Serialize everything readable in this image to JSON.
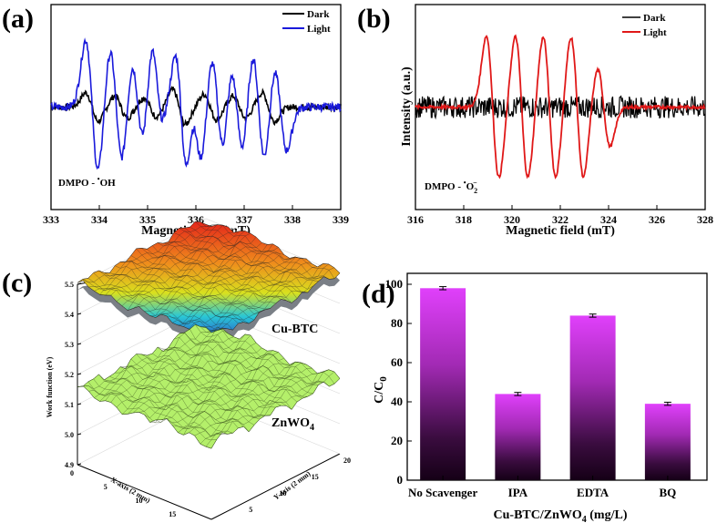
{
  "panels": {
    "a": {
      "label": "(a)"
    },
    "b": {
      "label": "(b)"
    },
    "c": {
      "label": "(c)"
    },
    "d": {
      "label": "(d)"
    }
  },
  "chart_data": [
    {
      "id": "a",
      "type": "line",
      "title": "",
      "xlabel": "Magnetic field (mT)",
      "ylabel": "",
      "xlim": [
        333,
        339
      ],
      "ylim": [
        -1.3,
        1.3
      ],
      "xticks": [
        "333",
        "334",
        "335",
        "336",
        "337",
        "338",
        "339"
      ],
      "legend": {
        "position": "top-right",
        "entries": [
          "Dark",
          "Light"
        ]
      },
      "annotation_prefix": "DMPO - ",
      "annotation_radical": "OH",
      "colors": {
        "Dark": "#000000",
        "Light": "#1a1adb"
      },
      "series": [
        {
          "name": "Dark",
          "baseline": 0,
          "noise": 0.04,
          "peaks": [
            [
              333.85,
              0.18
            ],
            [
              334.45,
              0.14
            ],
            [
              335.05,
              0.12
            ],
            [
              335.65,
              0.22
            ],
            [
              336.3,
              0.16
            ],
            [
              336.9,
              0.14
            ],
            [
              337.5,
              0.18
            ]
          ]
        },
        {
          "name": "Light",
          "baseline": 0,
          "noise": 0.05,
          "peaks": [
            [
              333.85,
              0.85
            ],
            [
              334.35,
              0.75
            ],
            [
              334.8,
              0.62
            ],
            [
              335.2,
              0.85
            ],
            [
              335.45,
              0.6
            ],
            [
              335.7,
              1.3
            ],
            [
              336.0,
              0.7
            ],
            [
              336.45,
              0.68
            ],
            [
              336.85,
              0.62
            ],
            [
              337.3,
              0.72
            ],
            [
              337.75,
              0.55
            ]
          ]
        }
      ]
    },
    {
      "id": "b",
      "type": "line",
      "title": "",
      "xlabel": "Magnetic field (mT)",
      "ylabel": "Intensity (a.u.)",
      "xlim": [
        316,
        328
      ],
      "ylim": [
        -1.3,
        1.3
      ],
      "xticks": [
        "316",
        "318",
        "320",
        "322",
        "324",
        "326",
        "328"
      ],
      "legend": {
        "position": "top-right",
        "entries": [
          "Dark",
          "Light"
        ]
      },
      "annotation_prefix": "DMPO - ",
      "annotation_radical": "O",
      "annotation_sup": "•",
      "annotation_sub": "2",
      "annotation_charge": "−",
      "colors": {
        "Dark": "#000000",
        "Light": "#e01818"
      },
      "series": [
        {
          "name": "Dark",
          "baseline": 0,
          "noise": 0.14,
          "peaks": []
        },
        {
          "name": "Light",
          "baseline": 0,
          "noise": 0.02,
          "peaks": [
            [
              319.2,
              0.9
            ],
            [
              320.4,
              0.9
            ],
            [
              321.55,
              0.9
            ],
            [
              322.7,
              0.9
            ],
            [
              323.8,
              0.5
            ]
          ]
        }
      ]
    },
    {
      "id": "c",
      "type": "surface",
      "title": "",
      "xlabel": "X-axis (2 mm)",
      "ylabel": "Y-axis (2 mm)",
      "zlabel": "Work function (eV)",
      "zticks": [
        "4.9",
        "5.0",
        "5.1",
        "5.2",
        "5.3",
        "5.4",
        "5.5"
      ],
      "xticks": [
        "0",
        "5",
        "10",
        "15",
        "20"
      ],
      "yticks": [
        "0",
        "5",
        "10",
        "15",
        "20"
      ],
      "series": [
        {
          "name": "Cu-BTC",
          "mean": 5.5
        },
        {
          "name": "ZnWO4",
          "mean": 5.15
        }
      ],
      "labels": {
        "cubtc": "Cu-BTC",
        "znwo4_base": "ZnWO",
        "znwo4_sub": "4"
      }
    },
    {
      "id": "d",
      "type": "bar",
      "title": "",
      "xlabel_base": "Cu-BTC/ZnWO",
      "xlabel_sub": "4",
      "xlabel_unit": " (mg/L)",
      "ylabel_base": "C/C",
      "ylabel_sub": "0",
      "ylim": [
        0,
        100
      ],
      "yticks": [
        "0",
        "20",
        "40",
        "60",
        "80",
        "100"
      ],
      "categories": [
        "No Scavenger",
        "IPA",
        "EDTA",
        "BQ"
      ],
      "values": [
        98,
        44,
        84,
        39
      ],
      "errors": [
        0.8,
        0.8,
        0.8,
        0.8
      ],
      "colors": {
        "top": "#e040fb",
        "bottom": "#150016"
      }
    }
  ]
}
